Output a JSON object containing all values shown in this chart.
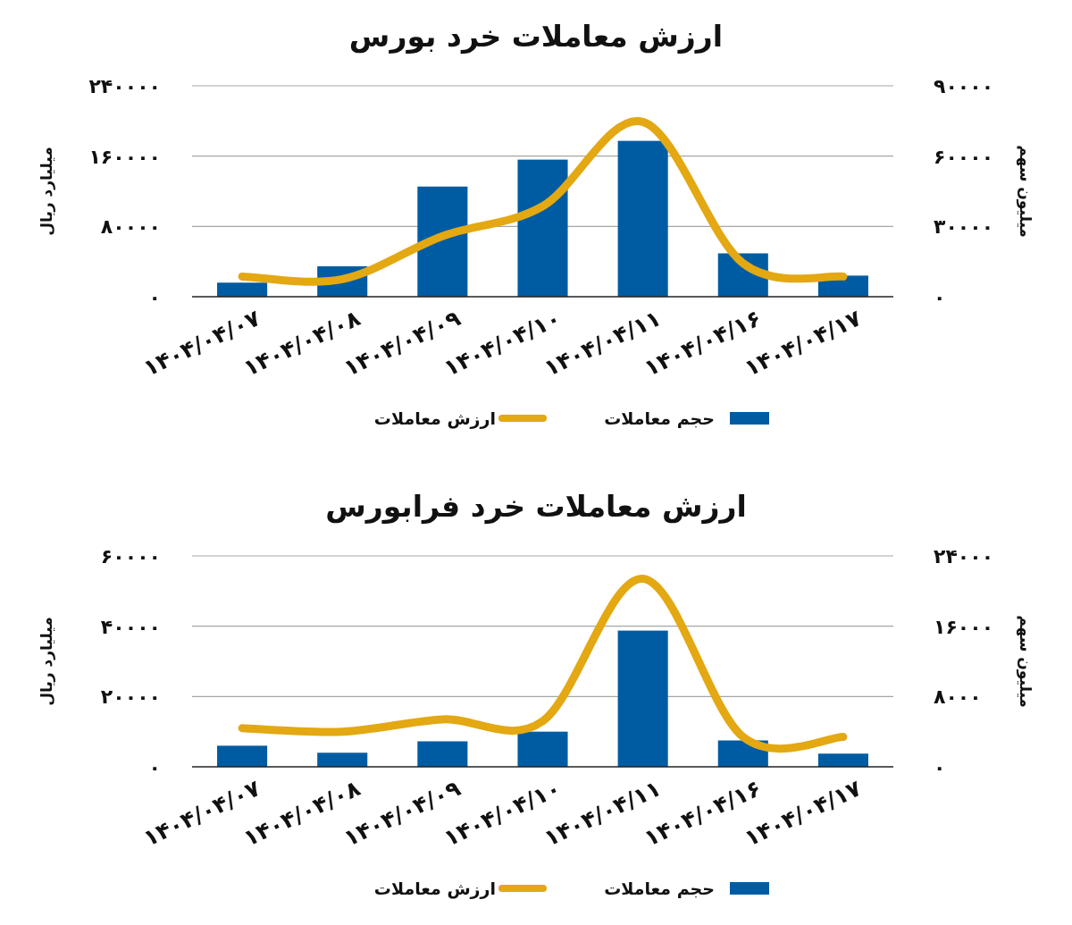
{
  "chart_data": [
    {
      "type": "bar",
      "title": "ارزش معاملات خرد بورس",
      "ylabel": "میلیارد ریال",
      "y2label": "میلیون سهم",
      "categories": [
        "۱۴۰۴/۰۴/۰۷",
        "۱۴۰۴/۰۴/۰۸",
        "۱۴۰۴/۰۴/۰۹",
        "۱۴۰۴/۰۴/۱۰",
        "۱۴۰۴/۰۴/۱۱",
        "۱۴۰۴/۰۴/۱۶",
        "۱۴۰۴/۰۴/۱۷"
      ],
      "series": [
        {
          "name": "حجم معاملات",
          "axis": "y2",
          "color": "#005ca2",
          "values": [
            6000,
            13000,
            47000,
            58500,
            66500,
            18500,
            9000
          ]
        },
        {
          "name": "ارزش معاملات",
          "type": "line",
          "axis": "y",
          "color": "#e3a812",
          "line_style": "solid",
          "values": [
            23000,
            20000,
            69000,
            103000,
            199000,
            38000,
            23000
          ]
        }
      ],
      "ylim": [
        0,
        240000
      ],
      "yticks": [
        {
          "value": 0,
          "label": "۰"
        },
        {
          "value": 80000,
          "label": "۸۰۰۰۰"
        },
        {
          "value": 160000,
          "label": "۱۶۰۰۰۰"
        },
        {
          "value": 240000,
          "label": "۲۴۰۰۰۰"
        }
      ],
      "y2lim": [
        0,
        90000
      ],
      "y2ticks": [
        {
          "value": 0,
          "label": "۰"
        },
        {
          "value": 30000,
          "label": "۳۰۰۰۰"
        },
        {
          "value": 60000,
          "label": "۶۰۰۰۰"
        },
        {
          "value": 90000,
          "label": "۹۰۰۰۰"
        }
      ],
      "grid": "y",
      "legend": "bottom"
    },
    {
      "type": "bar",
      "title": "ارزش معاملات خرد فرابورس",
      "ylabel": "میلیارد ریال",
      "y2label": "میلیون سهم",
      "categories": [
        "۱۴۰۴/۰۴/۰۷",
        "۱۴۰۴/۰۴/۰۸",
        "۱۴۰۴/۰۴/۰۹",
        "۱۴۰۴/۰۴/۱۰",
        "۱۴۰۴/۰۴/۱۱",
        "۱۴۰۴/۰۴/۱۶",
        "۱۴۰۴/۰۴/۱۷"
      ],
      "series": [
        {
          "name": "حجم معاملات",
          "axis": "y2",
          "color": "#005ca2",
          "values": [
            2400,
            1600,
            2900,
            4000,
            15500,
            3000,
            1500
          ]
        },
        {
          "name": "ارزش معاملات",
          "type": "line",
          "axis": "y",
          "color": "#e3a812",
          "line_style": "solid",
          "values": [
            11000,
            10000,
            13500,
            13000,
            53500,
            8500,
            8500
          ]
        }
      ],
      "ylim": [
        0,
        60000
      ],
      "yticks": [
        {
          "value": 0,
          "label": "۰"
        },
        {
          "value": 20000,
          "label": "۲۰۰۰۰"
        },
        {
          "value": 40000,
          "label": "۴۰۰۰۰"
        },
        {
          "value": 60000,
          "label": "۶۰۰۰۰"
        }
      ],
      "y2lim": [
        0,
        24000
      ],
      "y2ticks": [
        {
          "value": 0,
          "label": "۰"
        },
        {
          "value": 8000,
          "label": "۸۰۰۰"
        },
        {
          "value": 16000,
          "label": "۱۶۰۰۰"
        },
        {
          "value": 24000,
          "label": "۲۴۰۰۰"
        }
      ],
      "grid": "y",
      "legend": "bottom"
    }
  ]
}
